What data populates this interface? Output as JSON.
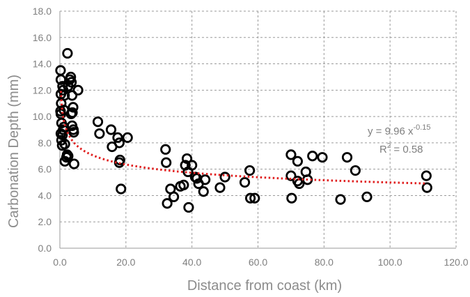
{
  "chart_data": {
    "type": "scatter",
    "xlabel": "Distance from coast (km)",
    "ylabel": "Carbonation Depth (mm)",
    "xlim": [
      0,
      120
    ],
    "ylim": [
      0,
      18
    ],
    "x_ticks": [
      "0.0",
      "20.0",
      "40.0",
      "60.0",
      "80.0",
      "100.0",
      "120.0"
    ],
    "y_ticks": [
      "0.0",
      "2.0",
      "4.0",
      "6.0",
      "8.0",
      "10.0",
      "12.0",
      "14.0",
      "16.0",
      "18.0"
    ],
    "grid": true,
    "trendline": {
      "type": "power",
      "coefficient": 9.96,
      "exponent": -0.15,
      "equation": "y = 9.96 x",
      "exponent_label": "-0.15",
      "r2_label": "R",
      "r2_sup": "2",
      "r2_value": "= 0.58",
      "color": "#e02020"
    },
    "marker_color": "#000000",
    "series": [
      {
        "points": [
          [
            0.2,
            13.5
          ],
          [
            0.3,
            12.8
          ],
          [
            0.3,
            11.7
          ],
          [
            0.4,
            11.0
          ],
          [
            0.2,
            10.4
          ],
          [
            0.3,
            10.2
          ],
          [
            0.5,
            9.5
          ],
          [
            0.3,
            8.7
          ],
          [
            0.5,
            8.2
          ],
          [
            0.7,
            7.8
          ],
          [
            0.8,
            8.6
          ],
          [
            1.0,
            9.0
          ],
          [
            1.2,
            9.2
          ],
          [
            0.8,
            12.3
          ],
          [
            1.0,
            12.0
          ],
          [
            1.4,
            11.6
          ],
          [
            1.2,
            10.5
          ],
          [
            1.5,
            7.9
          ],
          [
            1.5,
            6.6
          ],
          [
            2.0,
            6.9
          ],
          [
            2.2,
            7.1
          ],
          [
            2.5,
            7.0
          ],
          [
            2.3,
            14.8
          ],
          [
            2.5,
            12.3
          ],
          [
            3.0,
            12.8
          ],
          [
            3.3,
            13.0
          ],
          [
            3.5,
            12.6
          ],
          [
            3.7,
            11.6
          ],
          [
            3.4,
            10.2
          ],
          [
            3.8,
            10.3
          ],
          [
            4.0,
            10.7
          ],
          [
            3.7,
            9.3
          ],
          [
            4.1,
            9.0
          ],
          [
            4.2,
            8.8
          ],
          [
            4.3,
            6.4
          ],
          [
            5.5,
            12.0
          ],
          [
            11.5,
            9.6
          ],
          [
            12.0,
            8.7
          ],
          [
            15.5,
            9.0
          ],
          [
            15.8,
            7.7
          ],
          [
            17.5,
            8.4
          ],
          [
            18.0,
            8.0
          ],
          [
            18.2,
            6.7
          ],
          [
            18.0,
            6.5
          ],
          [
            18.5,
            4.5
          ],
          [
            20.5,
            8.4
          ],
          [
            32.0,
            7.5
          ],
          [
            32.2,
            6.5
          ],
          [
            32.5,
            3.4
          ],
          [
            33.5,
            4.5
          ],
          [
            34.5,
            3.9
          ],
          [
            36.5,
            4.7
          ],
          [
            37.5,
            4.8
          ],
          [
            38.0,
            6.3
          ],
          [
            38.5,
            6.8
          ],
          [
            38.8,
            5.8
          ],
          [
            39.0,
            3.1
          ],
          [
            40.0,
            6.3
          ],
          [
            41.0,
            5.4
          ],
          [
            41.5,
            5.3
          ],
          [
            42.0,
            4.9
          ],
          [
            43.5,
            4.3
          ],
          [
            44.0,
            5.2
          ],
          [
            48.5,
            4.6
          ],
          [
            50.0,
            5.4
          ],
          [
            56.0,
            5.0
          ],
          [
            57.5,
            5.9
          ],
          [
            57.7,
            3.8
          ],
          [
            59.0,
            3.8
          ],
          [
            70.0,
            7.1
          ],
          [
            70.0,
            5.5
          ],
          [
            70.2,
            3.8
          ],
          [
            72.0,
            6.6
          ],
          [
            72.0,
            5.1
          ],
          [
            72.5,
            4.9
          ],
          [
            74.5,
            5.8
          ],
          [
            75.0,
            5.2
          ],
          [
            76.5,
            7.0
          ],
          [
            79.5,
            6.9
          ],
          [
            85.0,
            3.7
          ],
          [
            87.0,
            6.9
          ],
          [
            89.5,
            5.9
          ],
          [
            93.0,
            3.9
          ],
          [
            111.0,
            5.5
          ],
          [
            111.2,
            4.6
          ]
        ]
      }
    ]
  }
}
